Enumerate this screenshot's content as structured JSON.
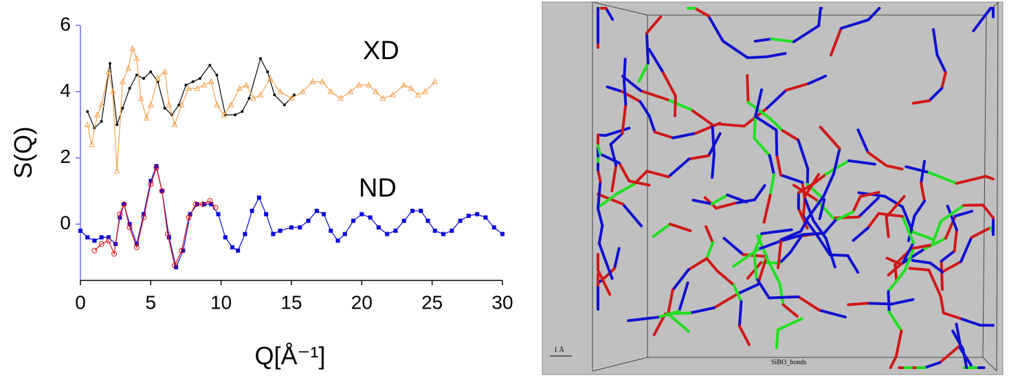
{
  "chart_data": {
    "type": "scatter",
    "xlabel": "Q[Å⁻¹]",
    "ylabel": "S(Q)",
    "annotations": [
      "XD",
      "ND"
    ],
    "xlim": [
      0,
      30
    ],
    "xticks": [
      0,
      5,
      10,
      15,
      20,
      25,
      30
    ],
    "ylim": [
      -1.7,
      6
    ],
    "yticks": [
      0,
      2,
      4,
      6
    ],
    "series": [
      {
        "color": "#000000",
        "marker": "dot",
        "x": [
          0.5,
          1.0,
          1.5,
          2.1,
          2.6,
          3.0,
          3.5,
          4.0,
          4.5,
          5.0,
          5.5,
          6.0,
          6.5,
          7.0,
          7.5,
          8.0,
          8.5,
          9.2,
          9.7,
          10.3,
          11.0,
          11.5,
          12.0,
          12.8,
          13.3,
          13.8,
          14.5,
          15.2
        ],
        "values": [
          3.4,
          2.9,
          3.1,
          4.85,
          3.0,
          3.5,
          4.1,
          4.5,
          4.4,
          4.6,
          4.3,
          3.5,
          3.3,
          3.6,
          4.2,
          4.3,
          4.4,
          4.8,
          4.5,
          3.3,
          3.3,
          3.4,
          3.8,
          5.0,
          4.6,
          3.9,
          3.6,
          3.9
        ]
      },
      {
        "color": "#f5a04a",
        "marker": "triangle-open",
        "x": [
          0.5,
          0.8,
          1.2,
          1.5,
          2.0,
          2.3,
          2.6,
          3.0,
          3.4,
          3.7,
          4.0,
          4.3,
          4.7,
          5.0,
          5.5,
          6.0,
          6.3,
          6.7,
          7.2,
          7.7,
          8.3,
          8.8,
          9.3,
          9.7,
          10.2,
          10.7,
          11.3,
          11.8,
          12.3,
          12.8,
          13.5,
          14.2,
          15.0,
          15.8,
          16.5,
          17.2,
          17.8,
          18.5,
          19.2,
          19.8,
          20.5,
          21.0,
          21.5,
          22.2,
          23.0,
          23.5,
          24.0,
          24.5,
          25.2
        ],
        "values": [
          3.0,
          2.4,
          3.3,
          3.6,
          4.6,
          4.0,
          1.6,
          4.3,
          4.7,
          5.3,
          5.0,
          3.8,
          3.2,
          3.6,
          4.4,
          4.6,
          3.6,
          3.0,
          3.6,
          4.1,
          4.1,
          4.2,
          4.3,
          3.6,
          3.3,
          3.6,
          4.1,
          4.2,
          3.8,
          3.9,
          4.4,
          4.0,
          3.8,
          4.0,
          4.3,
          4.3,
          4.0,
          3.8,
          4.0,
          4.2,
          4.2,
          4.0,
          3.8,
          3.9,
          4.2,
          4.1,
          3.9,
          4.0,
          4.3
        ]
      },
      {
        "color": "#0000dd",
        "marker": "square",
        "x": [
          0,
          0.5,
          1.0,
          1.5,
          2.0,
          2.5,
          2.8,
          3.1,
          3.5,
          4.0,
          4.5,
          5.0,
          5.4,
          5.8,
          6.3,
          6.8,
          7.3,
          7.8,
          8.3,
          8.8,
          9.3,
          9.8,
          10.3,
          10.8,
          11.2,
          11.7,
          12.2,
          12.7,
          13.2,
          13.7,
          14.2,
          15.0,
          15.6,
          16.2,
          16.8,
          17.3,
          17.8,
          18.3,
          18.8,
          19.4,
          20.0,
          20.6,
          21.2,
          21.8,
          22.4,
          23.0,
          23.6,
          24.2,
          24.7,
          25.2,
          25.8,
          26.4,
          27.0,
          27.6,
          28.2,
          28.8,
          29.4,
          30.0
        ],
        "values": [
          -0.2,
          -0.4,
          -0.5,
          -0.4,
          -0.4,
          -0.6,
          0.2,
          0.6,
          0.0,
          -0.6,
          0.3,
          1.3,
          1.75,
          1.0,
          -0.4,
          -1.3,
          -0.8,
          0.3,
          0.6,
          0.6,
          0.6,
          0.3,
          -0.4,
          -0.7,
          -0.8,
          -0.3,
          0.4,
          0.8,
          0.3,
          -0.3,
          -0.2,
          -0.1,
          -0.1,
          0.1,
          0.4,
          0.3,
          -0.2,
          -0.5,
          -0.3,
          0.1,
          0.3,
          0.2,
          -0.1,
          -0.3,
          -0.2,
          0.1,
          0.4,
          0.4,
          0.1,
          -0.2,
          -0.3,
          -0.2,
          0.1,
          0.25,
          0.3,
          0.2,
          -0.1,
          -0.3
        ]
      },
      {
        "color": "#e01010",
        "marker": "circle-open",
        "x": [
          1.0,
          1.5,
          2.0,
          2.4,
          2.8,
          3.1,
          3.5,
          4.0,
          4.5,
          5.0,
          5.4,
          5.8,
          6.2,
          6.7,
          7.2,
          7.7,
          8.2,
          8.7,
          9.2,
          9.6
        ],
        "values": [
          -0.8,
          -0.6,
          -0.5,
          -0.9,
          0.3,
          0.6,
          -0.1,
          -0.7,
          0.2,
          1.2,
          1.7,
          1.0,
          -0.3,
          -1.25,
          -0.8,
          0.2,
          0.6,
          0.6,
          0.7,
          0.5
        ]
      }
    ]
  },
  "structure_panel": {
    "scale_label": "1 Å",
    "caption": "SiBO_bonds"
  }
}
